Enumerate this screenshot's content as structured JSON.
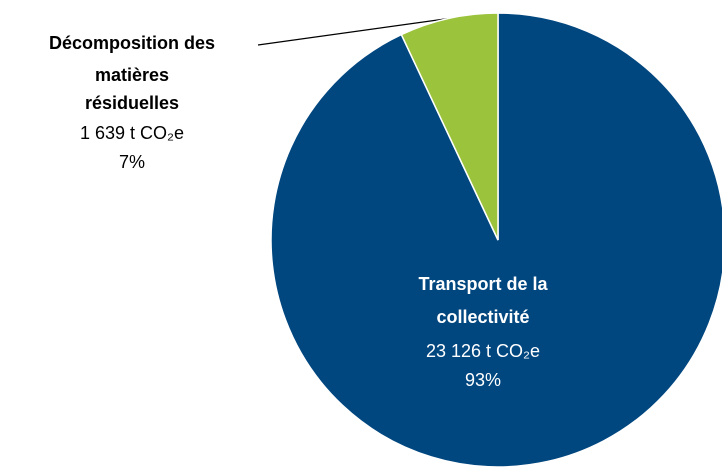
{
  "chart_data": {
    "type": "pie",
    "categories": [
      [
        "Transport de la",
        "collectivité"
      ],
      [
        "Décomposition des",
        "matières",
        "résiduelles"
      ]
    ],
    "values": [
      93,
      7
    ],
    "value_labels": [
      "93%",
      "7%"
    ],
    "amount_labels": [
      "23 126 t CO₂e",
      "1 639 t CO₂e"
    ],
    "colors": [
      "#00467f",
      "#9bc33c"
    ]
  }
}
